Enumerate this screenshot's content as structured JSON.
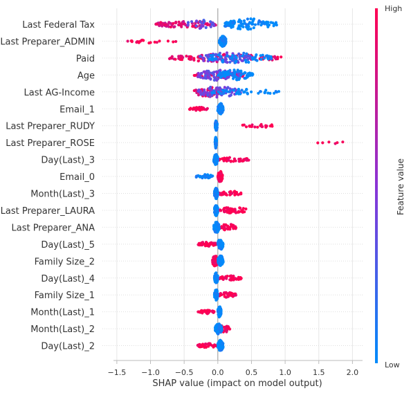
{
  "chart_data": {
    "type": "scatter",
    "subtype": "shap-beeswarm-summary",
    "xlabel": "SHAP value (impact on model output)",
    "xlim": [
      -1.55,
      2.15
    ],
    "xticks": [
      -1.5,
      -1.0,
      -0.5,
      0.0,
      0.5,
      1.0,
      1.5,
      2.0
    ],
    "xtick_labels": [
      "−1.5",
      "−1.0",
      "−0.5",
      "0.0",
      "0.5",
      "1.0",
      "1.5",
      "2.0"
    ],
    "grid": true,
    "colorbar": {
      "label": "Feature value",
      "high_label": "High",
      "low_label": "Low",
      "low_color": "#008bfb",
      "high_color": "#ff0052"
    },
    "features": [
      {
        "name": "Last Federal Tax",
        "clusters": [
          {
            "x0": -0.92,
            "x1": -0.03,
            "c": 0.85,
            "w": 0.62,
            "n": 90,
            "s": 1
          },
          {
            "x0": -0.45,
            "x1": -0.05,
            "c": 0.35,
            "w": 0.8,
            "n": 25,
            "s": 2
          },
          {
            "x0": 0.1,
            "x1": 0.88,
            "c": 0.0,
            "w": 1.0,
            "n": 90,
            "s": 3
          }
        ]
      },
      {
        "name": "Last Preparer_ADMIN",
        "clusters": [
          {
            "x0": -1.36,
            "x1": -0.6,
            "c": 1.0,
            "w": 0.35,
            "n": 20,
            "s": 4
          },
          {
            "x0": 0.02,
            "x1": 0.12,
            "c": 0.0,
            "w": 1.0,
            "n": 100,
            "s": 5
          }
        ]
      },
      {
        "name": "Paid",
        "clusters": [
          {
            "x0": -0.72,
            "x1": 0.95,
            "c": 0.9,
            "w": 0.7,
            "n": 95,
            "s": 6
          },
          {
            "x0": -0.3,
            "x1": 0.5,
            "c": 0.35,
            "w": 1.0,
            "n": 80,
            "s": 7
          },
          {
            "x0": -0.2,
            "x1": 0.8,
            "c": 0.0,
            "w": 0.9,
            "n": 50,
            "s": 8
          }
        ]
      },
      {
        "name": "Age",
        "clusters": [
          {
            "x0": -0.35,
            "x1": 0.45,
            "c": 0.95,
            "w": 0.55,
            "n": 50,
            "s": 9
          },
          {
            "x0": -0.3,
            "x1": 0.35,
            "c": 0.4,
            "w": 1.0,
            "n": 90,
            "s": 10
          },
          {
            "x0": 0.0,
            "x1": 0.52,
            "c": 0.0,
            "w": 0.9,
            "n": 70,
            "s": 11
          }
        ]
      },
      {
        "name": "Last AG-Income",
        "clusters": [
          {
            "x0": -0.35,
            "x1": 0.1,
            "c": 0.9,
            "w": 0.9,
            "n": 45,
            "s": 12
          },
          {
            "x0": -0.3,
            "x1": 0.35,
            "c": 0.4,
            "w": 1.0,
            "n": 70,
            "s": 13
          },
          {
            "x0": -0.1,
            "x1": 0.92,
            "c": 0.0,
            "w": 0.5,
            "n": 45,
            "s": 14
          }
        ]
      },
      {
        "name": "Email_1",
        "clusters": [
          {
            "x0": -0.42,
            "x1": -0.15,
            "c": 1.0,
            "w": 0.3,
            "n": 30,
            "s": 15
          },
          {
            "x0": 0.0,
            "x1": 0.08,
            "c": 0.0,
            "w": 1.0,
            "n": 80,
            "s": 16
          }
        ]
      },
      {
        "name": "Last Preparer_RUDY",
        "clusters": [
          {
            "x0": 0.35,
            "x1": 0.84,
            "c": 1.0,
            "w": 0.35,
            "n": 20,
            "s": 17
          },
          {
            "x0": -0.04,
            "x1": -0.01,
            "c": 0.0,
            "w": 1.0,
            "n": 80,
            "s": 18
          }
        ]
      },
      {
        "name": "Last Preparer_ROSE",
        "clusters": [
          {
            "x0": 1.48,
            "x1": 2.04,
            "c": 1.0,
            "w": 0.25,
            "n": 6,
            "s": 19
          },
          {
            "x0": -0.04,
            "x1": -0.02,
            "c": 0.0,
            "w": 1.0,
            "n": 80,
            "s": 20
          }
        ]
      },
      {
        "name": "Day(Last)_3",
        "clusters": [
          {
            "x0": 0.02,
            "x1": 0.46,
            "c": 1.0,
            "w": 0.4,
            "n": 40,
            "s": 21
          },
          {
            "x0": -0.06,
            "x1": 0.0,
            "c": 0.0,
            "w": 1.0,
            "n": 80,
            "s": 22
          }
        ]
      },
      {
        "name": "Email_0",
        "clusters": [
          {
            "x0": 0.0,
            "x1": 0.07,
            "c": 1.0,
            "w": 1.0,
            "n": 80,
            "s": 23
          },
          {
            "x0": -0.32,
            "x1": -0.05,
            "c": 0.0,
            "w": 0.35,
            "n": 30,
            "s": 24
          }
        ]
      },
      {
        "name": "Month(Last)_3",
        "clusters": [
          {
            "x0": 0.0,
            "x1": 0.35,
            "c": 1.0,
            "w": 0.45,
            "n": 40,
            "s": 25
          },
          {
            "x0": -0.05,
            "x1": 0.0,
            "c": 0.0,
            "w": 1.0,
            "n": 80,
            "s": 26
          }
        ]
      },
      {
        "name": "Last Preparer_LAURA",
        "clusters": [
          {
            "x0": 0.0,
            "x1": 0.45,
            "c": 1.0,
            "w": 0.55,
            "n": 50,
            "s": 27
          },
          {
            "x0": -0.05,
            "x1": 0.0,
            "c": 0.0,
            "w": 1.0,
            "n": 80,
            "s": 28
          }
        ]
      },
      {
        "name": "Last Preparer_ANA",
        "clusters": [
          {
            "x0": 0.0,
            "x1": 0.28,
            "c": 1.0,
            "w": 0.6,
            "n": 40,
            "s": 29
          },
          {
            "x0": -0.06,
            "x1": 0.02,
            "c": 0.0,
            "w": 1.0,
            "n": 80,
            "s": 30
          }
        ]
      },
      {
        "name": "Day(Last)_5",
        "clusters": [
          {
            "x0": -0.3,
            "x1": -0.02,
            "c": 1.0,
            "w": 0.4,
            "n": 40,
            "s": 31
          },
          {
            "x0": 0.0,
            "x1": 0.08,
            "c": 0.0,
            "w": 1.0,
            "n": 80,
            "s": 32
          }
        ]
      },
      {
        "name": "Family Size_2",
        "clusters": [
          {
            "x0": -0.08,
            "x1": 0.0,
            "c": 1.0,
            "w": 1.0,
            "n": 60,
            "s": 33
          },
          {
            "x0": 0.0,
            "x1": 0.08,
            "c": 0.0,
            "w": 1.0,
            "n": 70,
            "s": 34
          }
        ]
      },
      {
        "name": "Day(Last)_4",
        "clusters": [
          {
            "x0": 0.02,
            "x1": 0.37,
            "c": 1.0,
            "w": 0.4,
            "n": 40,
            "s": 35
          },
          {
            "x0": -0.05,
            "x1": 0.0,
            "c": 0.0,
            "w": 1.0,
            "n": 80,
            "s": 36
          }
        ]
      },
      {
        "name": "Family Size_1",
        "clusters": [
          {
            "x0": 0.0,
            "x1": 0.27,
            "c": 1.0,
            "w": 0.45,
            "n": 35,
            "s": 37
          },
          {
            "x0": -0.05,
            "x1": 0.0,
            "c": 0.0,
            "w": 1.0,
            "n": 80,
            "s": 38
          }
        ]
      },
      {
        "name": "Month(Last)_1",
        "clusters": [
          {
            "x0": -0.3,
            "x1": -0.02,
            "c": 1.0,
            "w": 0.35,
            "n": 35,
            "s": 39
          },
          {
            "x0": 0.0,
            "x1": 0.05,
            "c": 0.0,
            "w": 1.0,
            "n": 80,
            "s": 40
          }
        ]
      },
      {
        "name": "Month(Last)_2",
        "clusters": [
          {
            "x0": -0.02,
            "x1": 0.18,
            "c": 1.0,
            "w": 0.7,
            "n": 40,
            "s": 41
          },
          {
            "x0": -0.04,
            "x1": 0.06,
            "c": 0.0,
            "w": 1.0,
            "n": 80,
            "s": 42
          }
        ]
      },
      {
        "name": "Day(Last)_2",
        "clusters": [
          {
            "x0": -0.3,
            "x1": -0.02,
            "c": 1.0,
            "w": 0.4,
            "n": 35,
            "s": 43
          },
          {
            "x0": 0.0,
            "x1": 0.08,
            "c": 0.0,
            "w": 1.0,
            "n": 80,
            "s": 44
          }
        ]
      }
    ]
  }
}
